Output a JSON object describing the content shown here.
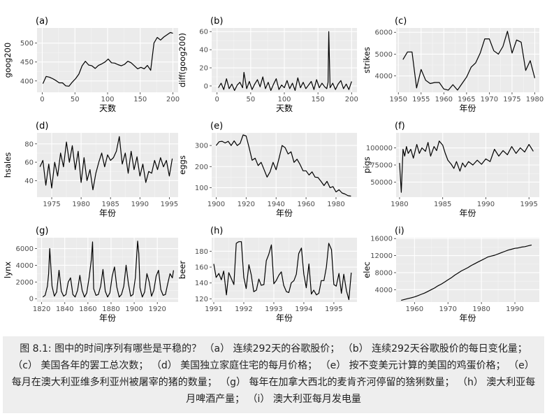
{
  "caption": "图 8.1: 图中的时间序列有哪些是平稳的？ （a） 连续292天的谷歌股价； （b） 连续292天谷歌股价的每日变化量； （c） 美国各年的罢工总次数； （d） 美国独立家庭住宅的每月价格； （e） 按不变美元计算的美国的鸡蛋价格； （e） 每月在澳大利亚维多利亚州被屠宰的猪的数量； （g） 每年在加拿大西北的麦肯齐河停留的猞猁数量； （h） 澳大利亚每月啤酒产量； （i） 澳大利亚每月发电量",
  "colors": {
    "panel_bg": "#ebebeb",
    "grid_major": "#ffffff",
    "grid_minor": "#f5f5f5",
    "line": "#000000",
    "tick_text": "#4d4d4d",
    "caption_bg": "#eeeeee"
  },
  "chart_data": [
    {
      "id": "a",
      "tag": "(a)",
      "type": "line",
      "xlabel": "天数",
      "ylabel": "goog200",
      "xlim": [
        -8,
        208
      ],
      "ylim": [
        370,
        540
      ],
      "xticks": [
        0,
        50,
        100,
        150,
        200
      ],
      "xticklabels": [
        "0",
        "50",
        "100",
        "150",
        "200"
      ],
      "yticks": [
        400,
        450,
        500
      ],
      "yticklabels": [
        "400",
        "450",
        "500"
      ],
      "x": [
        1,
        6,
        11,
        16,
        21,
        26,
        31,
        36,
        41,
        46,
        51,
        56,
        61,
        66,
        71,
        76,
        81,
        86,
        91,
        96,
        101,
        106,
        111,
        116,
        121,
        126,
        131,
        136,
        141,
        146,
        151,
        156,
        161,
        166,
        171,
        176,
        181,
        186,
        191,
        196,
        200
      ],
      "y": [
        393,
        412,
        410,
        406,
        401,
        395,
        395,
        387,
        386,
        397,
        406,
        418,
        440,
        452,
        442,
        440,
        433,
        441,
        445,
        450,
        458,
        448,
        447,
        443,
        440,
        444,
        452,
        448,
        440,
        432,
        436,
        432,
        441,
        428,
        500,
        515,
        508,
        516,
        522,
        528,
        526
      ]
    },
    {
      "id": "b",
      "tag": "(b)",
      "type": "line",
      "xlabel": "天数",
      "ylabel": "diff(goog200)",
      "xlim": [
        -8,
        208
      ],
      "ylim": [
        -7,
        64
      ],
      "xticks": [
        0,
        50,
        100,
        150,
        200
      ],
      "xticklabels": [
        "0",
        "50",
        "100",
        "150",
        "200"
      ],
      "yticks": [
        0,
        20,
        40,
        60
      ],
      "yticklabels": [
        "0",
        "20",
        "40",
        "60"
      ],
      "x": [
        2,
        6,
        10,
        14,
        18,
        22,
        26,
        30,
        34,
        38,
        40,
        44,
        48,
        52,
        56,
        60,
        64,
        68,
        72,
        76,
        80,
        84,
        88,
        92,
        96,
        100,
        104,
        108,
        112,
        116,
        120,
        124,
        128,
        132,
        136,
        140,
        144,
        148,
        152,
        156,
        160,
        163,
        165,
        166,
        168,
        172,
        176,
        180,
        184,
        188,
        192,
        196,
        200
      ],
      "y": [
        -2,
        3,
        -4,
        8,
        -3,
        2,
        -5,
        1,
        4,
        -2,
        15,
        -3,
        5,
        -4,
        2,
        7,
        -1,
        10,
        -3,
        4,
        -5,
        2,
        8,
        -4,
        1,
        -2,
        6,
        -3,
        3,
        -5,
        9,
        -2,
        4,
        -3,
        1,
        5,
        -4,
        7,
        -2,
        3,
        -1,
        -3,
        4,
        60,
        -2,
        3,
        -4,
        2,
        6,
        -3,
        2,
        -4,
        5
      ]
    },
    {
      "id": "c",
      "tag": "(c)",
      "type": "line",
      "xlabel": "年份",
      "ylabel": "strikes",
      "xlim": [
        1949.5,
        1981
      ],
      "ylim": [
        3250,
        6200
      ],
      "xticks": [
        1950,
        1955,
        1960,
        1965,
        1970,
        1975,
        1980
      ],
      "xticklabels": [
        "1950",
        "1955",
        "1960",
        "1965",
        "1970",
        "1975",
        "1980"
      ],
      "yticks": [
        4000,
        5000,
        6000
      ],
      "yticklabels": [
        "4000",
        "5000",
        "6000"
      ],
      "x": [
        1951,
        1952,
        1953,
        1954,
        1955,
        1956,
        1957,
        1958,
        1959,
        1960,
        1961,
        1962,
        1963,
        1964,
        1965,
        1966,
        1967,
        1968,
        1969,
        1970,
        1971,
        1972,
        1973,
        1974,
        1975,
        1976,
        1977,
        1978,
        1979,
        1980
      ],
      "y": [
        4750,
        5100,
        5100,
        3450,
        4300,
        3800,
        3650,
        3700,
        3700,
        3400,
        3350,
        3600,
        3350,
        3650,
        3950,
        4400,
        4600,
        5050,
        5700,
        5700,
        5150,
        5000,
        5350,
        6050,
        5050,
        5650,
        5550,
        4250,
        4700,
        3900
      ]
    },
    {
      "id": "d",
      "tag": "(d)",
      "type": "line",
      "xlabel": "年份",
      "ylabel": "hsales",
      "xlim": [
        1972.5,
        1996.5
      ],
      "ylim": [
        22,
        92
      ],
      "xticks": [
        1975,
        1980,
        1985,
        1990,
        1995
      ],
      "xticklabels": [
        "1975",
        "1980",
        "1985",
        "1990",
        "1995"
      ],
      "yticks": [
        40,
        60,
        80
      ],
      "yticklabels": [
        "40",
        "60",
        "80"
      ],
      "x": [
        1973.0,
        1973.5,
        1974.0,
        1974.5,
        1975.0,
        1975.5,
        1976.0,
        1976.5,
        1977.0,
        1977.5,
        1978.0,
        1978.5,
        1979.0,
        1979.5,
        1980.0,
        1980.5,
        1981.0,
        1981.5,
        1982.0,
        1982.5,
        1983.0,
        1983.5,
        1984.0,
        1984.5,
        1985.0,
        1985.5,
        1986.0,
        1986.5,
        1987.0,
        1987.5,
        1988.0,
        1988.5,
        1989.0,
        1989.5,
        1990.0,
        1990.5,
        1991.0,
        1991.5,
        1992.0,
        1992.5,
        1993.0,
        1993.5,
        1994.0,
        1994.5,
        1995.0,
        1995.5
      ],
      "y": [
        55,
        62,
        35,
        58,
        32,
        60,
        45,
        70,
        55,
        82,
        60,
        78,
        52,
        72,
        38,
        65,
        40,
        52,
        30,
        48,
        60,
        70,
        55,
        68,
        62,
        65,
        72,
        88,
        58,
        70,
        48,
        72,
        52,
        66,
        45,
        58,
        38,
        50,
        48,
        62,
        52,
        65,
        55,
        62,
        45,
        64
      ]
    },
    {
      "id": "e",
      "tag": "(e)",
      "type": "line",
      "xlabel": "年份",
      "ylabel": "eggs",
      "xlim": [
        1897,
        1994
      ],
      "ylim": [
        55,
        360
      ],
      "xticks": [
        1900,
        1920,
        1940,
        1960,
        1980
      ],
      "xticklabels": [
        "1900",
        "1920",
        "1940",
        "1960",
        "1980"
      ],
      "yticks": [
        100,
        200,
        300
      ],
      "yticklabels": [
        "100",
        "200",
        "300"
      ],
      "x": [
        1900,
        1902,
        1904,
        1906,
        1908,
        1910,
        1912,
        1914,
        1916,
        1918,
        1920,
        1922,
        1924,
        1926,
        1928,
        1930,
        1932,
        1934,
        1936,
        1938,
        1940,
        1942,
        1944,
        1946,
        1948,
        1950,
        1952,
        1954,
        1956,
        1958,
        1960,
        1962,
        1964,
        1966,
        1968,
        1970,
        1972,
        1974,
        1976,
        1978,
        1980,
        1982,
        1984,
        1986,
        1988,
        1990
      ],
      "y": [
        300,
        318,
        320,
        312,
        320,
        300,
        322,
        300,
        310,
        350,
        345,
        290,
        230,
        240,
        205,
        220,
        185,
        150,
        175,
        220,
        185,
        240,
        300,
        290,
        260,
        270,
        220,
        235,
        210,
        180,
        180,
        160,
        175,
        150,
        148,
        130,
        110,
        130,
        100,
        105,
        80,
        90,
        75,
        70,
        62,
        60
      ]
    },
    {
      "id": "f",
      "tag": "(f)",
      "type": "line",
      "xlabel": "年份",
      "ylabel": "pigs",
      "xlim": [
        1979.6,
        1996.2
      ],
      "ylim": [
        28000,
        122000
      ],
      "xticks": [
        1980,
        1985,
        1990,
        1995
      ],
      "xticklabels": [
        "1980",
        "1985",
        "1990",
        "1995"
      ],
      "yticks": [
        50000,
        75000,
        100000
      ],
      "yticklabels": [
        "50000",
        "75000",
        "100000"
      ],
      "x": [
        1980.0,
        1980.2,
        1980.4,
        1980.6,
        1980.8,
        1981.0,
        1981.3,
        1981.6,
        1982.0,
        1982.3,
        1982.6,
        1983.0,
        1983.3,
        1983.6,
        1984.0,
        1984.3,
        1984.6,
        1985.0,
        1985.3,
        1985.6,
        1986.0,
        1986.3,
        1986.6,
        1987.0,
        1987.3,
        1987.6,
        1988.0,
        1988.5,
        1989.0,
        1989.5,
        1990.0,
        1990.5,
        1991.0,
        1991.5,
        1992.0,
        1992.5,
        1993.0,
        1993.5,
        1994.0,
        1994.5,
        1995.0,
        1995.5
      ],
      "y": [
        78000,
        35000,
        98000,
        88000,
        102000,
        92000,
        98000,
        85000,
        105000,
        92000,
        100000,
        95000,
        108000,
        88000,
        102000,
        96000,
        110000,
        104000,
        92000,
        82000,
        76000,
        70000,
        80000,
        66000,
        78000,
        72000,
        80000,
        75000,
        82000,
        76000,
        84000,
        80000,
        98000,
        88000,
        96000,
        90000,
        102000,
        92000,
        100000,
        94000,
        105000,
        95000
      ]
    },
    {
      "id": "g",
      "tag": "(g)",
      "type": "line",
      "xlabel": "年份",
      "ylabel": "lynx",
      "xlim": [
        1816,
        1938
      ],
      "ylim": [
        -400,
        7300
      ],
      "xticks": [
        1820,
        1840,
        1860,
        1880,
        1900,
        1920
      ],
      "xticklabels": [
        "1820",
        "1840",
        "1860",
        "1880",
        "1900",
        "1920"
      ],
      "yticks": [
        0,
        2000,
        4000,
        6000
      ],
      "yticklabels": [
        "0",
        "2000",
        "4000",
        "6000"
      ],
      "x": [
        1821,
        1823,
        1825,
        1826,
        1827,
        1829,
        1831,
        1833,
        1835,
        1837,
        1839,
        1841,
        1843,
        1845,
        1847,
        1849,
        1851,
        1853,
        1855,
        1857,
        1859,
        1861,
        1863,
        1864,
        1865,
        1867,
        1869,
        1871,
        1873,
        1875,
        1877,
        1879,
        1881,
        1883,
        1885,
        1887,
        1889,
        1891,
        1893,
        1895,
        1897,
        1899,
        1901,
        1903,
        1904,
        1905,
        1907,
        1909,
        1911,
        1913,
        1915,
        1917,
        1919,
        1921,
        1923,
        1925,
        1927,
        1929,
        1931,
        1933,
        1934
      ],
      "y": [
        200,
        400,
        1500,
        3000,
        6000,
        1500,
        300,
        800,
        3400,
        900,
        300,
        500,
        2000,
        2500,
        500,
        200,
        1000,
        2800,
        1000,
        200,
        700,
        2500,
        4700,
        6800,
        1200,
        400,
        500,
        1500,
        3500,
        900,
        200,
        700,
        2700,
        3800,
        1400,
        200,
        500,
        1500,
        4000,
        1800,
        300,
        500,
        2500,
        6900,
        5400,
        1300,
        200,
        800,
        3000,
        2000,
        300,
        1000,
        2700,
        3400,
        1100,
        400,
        500,
        1800,
        3000,
        2500,
        3400
      ]
    },
    {
      "id": "h",
      "tag": "(h)",
      "type": "line",
      "xlabel": "年份",
      "ylabel": "beer",
      "xlim": [
        1990.93,
        1995.77
      ],
      "ylim": [
        116,
        197
      ],
      "xticks": [
        1991,
        1992,
        1993,
        1994,
        1995
      ],
      "xticklabels": [
        "1991",
        "1992",
        "1993",
        "1994",
        "1995"
      ],
      "yticks": [
        120,
        140,
        160,
        180
      ],
      "yticklabels": [
        "120",
        "140",
        "160",
        "180"
      ],
      "x": [
        1991.0,
        1991.08,
        1991.17,
        1991.25,
        1991.33,
        1991.42,
        1991.5,
        1991.58,
        1991.67,
        1991.75,
        1991.83,
        1991.92,
        1992.0,
        1992.08,
        1992.17,
        1992.25,
        1992.33,
        1992.42,
        1992.5,
        1992.58,
        1992.67,
        1992.75,
        1992.83,
        1992.92,
        1993.0,
        1993.08,
        1993.17,
        1993.25,
        1993.33,
        1993.42,
        1993.5,
        1993.58,
        1993.67,
        1993.75,
        1993.83,
        1993.92,
        1994.0,
        1994.08,
        1994.17,
        1994.25,
        1994.33,
        1994.42,
        1994.5,
        1994.58,
        1994.67,
        1994.75,
        1994.83,
        1994.92,
        1995.0,
        1995.08,
        1995.17,
        1995.25,
        1995.33,
        1995.42,
        1995.5,
        1995.58
      ],
      "y": [
        164,
        147,
        152,
        144,
        155,
        125,
        153,
        146,
        138,
        190,
        192,
        192,
        147,
        133,
        163,
        150,
        129,
        131,
        145,
        137,
        138,
        168,
        176,
        188,
        139,
        143,
        150,
        154,
        137,
        129,
        128,
        140,
        143,
        151,
        177,
        184,
        151,
        134,
        164,
        126,
        131,
        125,
        127,
        143,
        143,
        160,
        190,
        182,
        138,
        136,
        152,
        127,
        151,
        130,
        119,
        153
      ]
    },
    {
      "id": "i",
      "tag": "(i)",
      "type": "line",
      "xlabel": "年份",
      "ylabel": "elec",
      "xlim": [
        1954.5,
        1997.3
      ],
      "ylim": [
        1100,
        16200
      ],
      "xticks": [
        1960,
        1970,
        1980,
        1990
      ],
      "xticklabels": [
        "1960",
        "1970",
        "1980",
        "1990"
      ],
      "yticks": [
        4000,
        8000,
        12000,
        16000
      ],
      "yticklabels": [
        "4000",
        "8000",
        "12000",
        "16000"
      ],
      "x": [
        1956.0,
        1957.0,
        1958.0,
        1959.0,
        1960.0,
        1961.0,
        1962.0,
        1963.0,
        1964.0,
        1965.0,
        1966.0,
        1967.0,
        1968.0,
        1969.0,
        1970.0,
        1971.0,
        1972.0,
        1973.0,
        1974.0,
        1975.0,
        1976.0,
        1977.0,
        1978.0,
        1979.0,
        1980.0,
        1981.0,
        1982.0,
        1983.0,
        1984.0,
        1985.0,
        1986.0,
        1987.0,
        1988.0,
        1989.0,
        1990.0,
        1991.0,
        1992.0,
        1993.0,
        1994.0,
        1995.0
      ],
      "y": [
        1500,
        1700,
        1900,
        2100,
        2300,
        2600,
        2900,
        3200,
        3600,
        4000,
        4400,
        4900,
        5300,
        5800,
        6300,
        6800,
        7400,
        7900,
        8400,
        8800,
        9200,
        9700,
        10100,
        10500,
        10900,
        11300,
        11700,
        11900,
        12100,
        12400,
        12700,
        13000,
        13300,
        13500,
        13700,
        13800,
        14000,
        14100,
        14300,
        14500
      ]
    }
  ]
}
